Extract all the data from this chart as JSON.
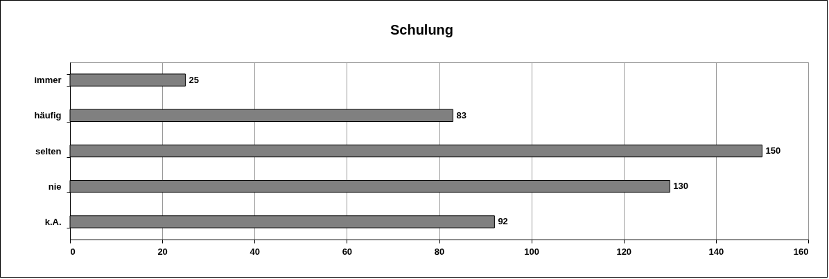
{
  "chart_data": {
    "type": "bar",
    "orientation": "horizontal",
    "title": "Schulung",
    "categories": [
      "immer",
      "häufig",
      "selten",
      "nie",
      "k.A."
    ],
    "values": [
      25,
      83,
      150,
      130,
      92
    ],
    "color": "#808080",
    "xlim": [
      0,
      160
    ],
    "xticks": [
      0,
      20,
      40,
      60,
      80,
      100,
      120,
      140,
      160
    ],
    "grid": "x",
    "data_labels": true
  }
}
